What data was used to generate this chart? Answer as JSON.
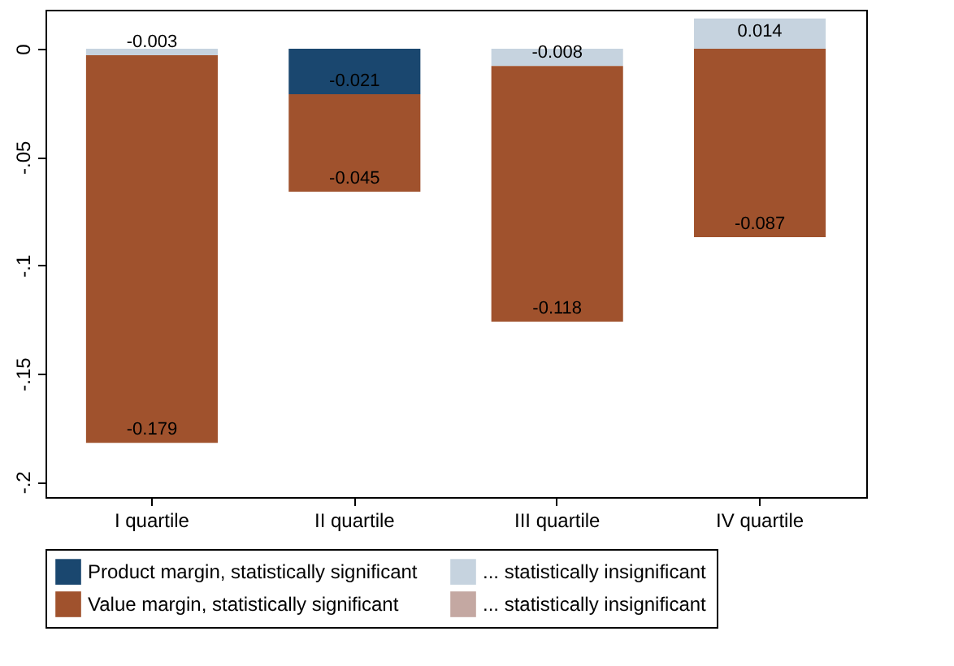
{
  "chart_data": {
    "type": "bar",
    "stacked": true,
    "categories": [
      "I quartile",
      "II quartile",
      "III quartile",
      "IV quartile"
    ],
    "series": [
      {
        "name": "Product margin, statistically significant",
        "color": "#1a476f",
        "values": [
          null,
          -0.021,
          null,
          null
        ],
        "value_labels": [
          null,
          "-0.021",
          null,
          null
        ]
      },
      {
        "name": "... statistically insignificant",
        "color": "#c6d3df",
        "values": [
          -0.003,
          null,
          -0.008,
          0.014
        ],
        "value_labels": [
          "-0.003",
          null,
          "-0.008",
          "0.014"
        ]
      },
      {
        "name": "Value margin, statistically significant",
        "color": "#a0522d",
        "values": [
          -0.179,
          -0.045,
          -0.118,
          -0.087
        ],
        "value_labels": [
          "-0.179",
          "-0.045",
          "-0.118",
          "-0.087"
        ]
      },
      {
        "name": "... statistically insignificant",
        "color": "#c4a8a2",
        "values": [
          null,
          null,
          null,
          null
        ]
      }
    ],
    "ylim": [
      -0.207,
      0.018
    ],
    "yticks": [
      {
        "value": -0.2,
        "label": "-.2"
      },
      {
        "value": -0.15,
        "label": "-.15"
      },
      {
        "value": -0.1,
        "label": "-.1"
      },
      {
        "value": -0.05,
        "label": "-.05"
      },
      0
    ],
    "grid": false,
    "legend": "bottom"
  }
}
